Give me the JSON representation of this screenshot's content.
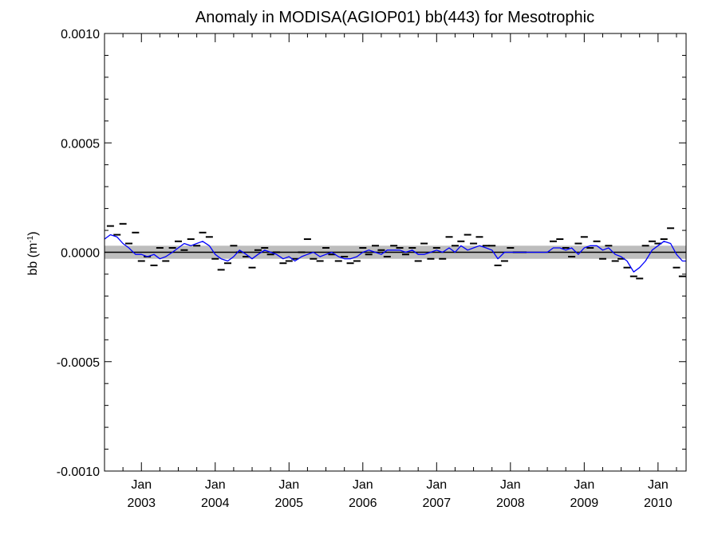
{
  "chart_data": {
    "type": "line",
    "title": "Anomaly in MODISA(AGIOP01) bb(443) for Mesotrophic",
    "ylabel_main": "bb (m",
    "ylabel_sup": "-1",
    "ylabel_close": ")",
    "ylim": [
      -0.001,
      0.001
    ],
    "xlim": [
      2002.5,
      2010.38
    ],
    "y_ticks": [
      {
        "value": 0.001,
        "label": "0.0010"
      },
      {
        "value": 0.0005,
        "label": "0.0005"
      },
      {
        "value": 0.0,
        "label": "0.0000"
      },
      {
        "value": -0.0005,
        "label": "-0.0005"
      },
      {
        "value": -0.001,
        "label": "-0.0010"
      }
    ],
    "x_ticks": [
      {
        "value": 2003.0,
        "month": "Jan",
        "year": "2003"
      },
      {
        "value": 2004.0,
        "month": "Jan",
        "year": "2004"
      },
      {
        "value": 2005.0,
        "month": "Jan",
        "year": "2005"
      },
      {
        "value": 2006.0,
        "month": "Jan",
        "year": "2006"
      },
      {
        "value": 2007.0,
        "month": "Jan",
        "year": "2007"
      },
      {
        "value": 2008.0,
        "month": "Jan",
        "year": "2008"
      },
      {
        "value": 2009.0,
        "month": "Jan",
        "year": "2009"
      },
      {
        "value": 2010.0,
        "month": "Jan",
        "year": "2010"
      }
    ],
    "zero_line": 0.0,
    "band": {
      "lower": -3e-05,
      "upper": 3e-05,
      "color": "#bdbdbd"
    },
    "series": [
      {
        "kind": "line",
        "color": "#0000ff",
        "points": [
          [
            2002.5,
            6e-05
          ],
          [
            2002.58,
            8e-05
          ],
          [
            2002.67,
            7e-05
          ],
          [
            2002.75,
            4e-05
          ],
          [
            2002.83,
            2e-05
          ],
          [
            2002.92,
            -1e-05
          ],
          [
            2003.0,
            -1e-05
          ],
          [
            2003.08,
            -2e-05
          ],
          [
            2003.17,
            -1e-05
          ],
          [
            2003.25,
            -3e-05
          ],
          [
            2003.33,
            -2e-05
          ],
          [
            2003.42,
            0.0
          ],
          [
            2003.5,
            2e-05
          ],
          [
            2003.58,
            4e-05
          ],
          [
            2003.67,
            3e-05
          ],
          [
            2003.75,
            4e-05
          ],
          [
            2003.83,
            5e-05
          ],
          [
            2003.92,
            3e-05
          ],
          [
            2004.0,
            -1e-05
          ],
          [
            2004.08,
            -3e-05
          ],
          [
            2004.17,
            -4e-05
          ],
          [
            2004.25,
            -2e-05
          ],
          [
            2004.33,
            1e-05
          ],
          [
            2004.42,
            -1e-05
          ],
          [
            2004.5,
            -3e-05
          ],
          [
            2004.58,
            -1e-05
          ],
          [
            2004.67,
            1e-05
          ],
          [
            2004.75,
            0.0
          ],
          [
            2004.83,
            -1e-05
          ],
          [
            2004.92,
            -3e-05
          ],
          [
            2005.0,
            -2e-05
          ],
          [
            2005.08,
            -4e-05
          ],
          [
            2005.17,
            -2e-05
          ],
          [
            2005.25,
            -1e-05
          ],
          [
            2005.33,
            0.0
          ],
          [
            2005.42,
            -2e-05
          ],
          [
            2005.5,
            -1e-05
          ],
          [
            2005.58,
            0.0
          ],
          [
            2005.67,
            -2e-05
          ],
          [
            2005.75,
            -3e-05
          ],
          [
            2005.83,
            -3e-05
          ],
          [
            2005.92,
            -2e-05
          ],
          [
            2006.0,
            0.0
          ],
          [
            2006.08,
            1e-05
          ],
          [
            2006.17,
            0.0
          ],
          [
            2006.25,
            -1e-05
          ],
          [
            2006.33,
            1e-05
          ],
          [
            2006.42,
            1e-05
          ],
          [
            2006.5,
            1e-05
          ],
          [
            2006.58,
            0.0
          ],
          [
            2006.67,
            1e-05
          ],
          [
            2006.75,
            -1e-05
          ],
          [
            2006.83,
            -1e-05
          ],
          [
            2006.92,
            0.0
          ],
          [
            2007.0,
            1e-05
          ],
          [
            2007.08,
            0.0
          ],
          [
            2007.17,
            2e-05
          ],
          [
            2007.25,
            0.0
          ],
          [
            2007.33,
            3e-05
          ],
          [
            2007.42,
            1e-05
          ],
          [
            2007.5,
            2e-05
          ],
          [
            2007.58,
            3e-05
          ],
          [
            2007.67,
            2e-05
          ],
          [
            2007.75,
            1e-05
          ],
          [
            2007.83,
            -3e-05
          ],
          [
            2007.92,
            0.0
          ],
          [
            2008.0,
            0.0
          ],
          [
            2008.08,
            0.0
          ],
          [
            2008.17,
            0.0
          ],
          [
            2008.25,
            0.0
          ],
          [
            2008.33,
            0.0
          ],
          [
            2008.42,
            0.0
          ],
          [
            2008.5,
            0.0
          ],
          [
            2008.58,
            2e-05
          ],
          [
            2008.67,
            2e-05
          ],
          [
            2008.75,
            1e-05
          ],
          [
            2008.83,
            2e-05
          ],
          [
            2008.92,
            -1e-05
          ],
          [
            2009.0,
            2e-05
          ],
          [
            2009.08,
            3e-05
          ],
          [
            2009.17,
            3e-05
          ],
          [
            2009.25,
            1e-05
          ],
          [
            2009.33,
            2e-05
          ],
          [
            2009.42,
            -1e-05
          ],
          [
            2009.5,
            -2e-05
          ],
          [
            2009.58,
            -4e-05
          ],
          [
            2009.67,
            -9e-05
          ],
          [
            2009.75,
            -7e-05
          ],
          [
            2009.83,
            -4e-05
          ],
          [
            2009.92,
            1e-05
          ],
          [
            2010.0,
            3e-05
          ],
          [
            2010.08,
            5e-05
          ],
          [
            2010.17,
            4e-05
          ],
          [
            2010.25,
            -1e-05
          ],
          [
            2010.33,
            -4e-05
          ],
          [
            2010.38,
            -4e-05
          ]
        ]
      },
      {
        "kind": "dash-markers",
        "color": "#000000",
        "points": [
          [
            2002.58,
            0.00012
          ],
          [
            2002.67,
            8e-05
          ],
          [
            2002.75,
            0.00013
          ],
          [
            2002.83,
            4e-05
          ],
          [
            2002.92,
            9e-05
          ],
          [
            2003.0,
            -4e-05
          ],
          [
            2003.08,
            -2e-05
          ],
          [
            2003.17,
            -6e-05
          ],
          [
            2003.25,
            2e-05
          ],
          [
            2003.33,
            -4e-05
          ],
          [
            2003.42,
            2e-05
          ],
          [
            2003.5,
            5e-05
          ],
          [
            2003.58,
            1e-05
          ],
          [
            2003.67,
            6e-05
          ],
          [
            2003.75,
            3e-05
          ],
          [
            2003.83,
            9e-05
          ],
          [
            2003.92,
            7e-05
          ],
          [
            2004.0,
            -3e-05
          ],
          [
            2004.08,
            -8e-05
          ],
          [
            2004.17,
            -5e-05
          ],
          [
            2004.25,
            3e-05
          ],
          [
            2004.33,
            0.0
          ],
          [
            2004.42,
            -2e-05
          ],
          [
            2004.5,
            -7e-05
          ],
          [
            2004.58,
            1e-05
          ],
          [
            2004.67,
            2e-05
          ],
          [
            2004.75,
            -1e-05
          ],
          [
            2004.83,
            0.0
          ],
          [
            2004.92,
            -5e-05
          ],
          [
            2005.0,
            -4e-05
          ],
          [
            2005.08,
            -3e-05
          ],
          [
            2005.17,
            0.0
          ],
          [
            2005.25,
            6e-05
          ],
          [
            2005.33,
            -3e-05
          ],
          [
            2005.42,
            -4e-05
          ],
          [
            2005.5,
            2e-05
          ],
          [
            2005.58,
            -1e-05
          ],
          [
            2005.67,
            -4e-05
          ],
          [
            2005.75,
            -2e-05
          ],
          [
            2005.83,
            -5e-05
          ],
          [
            2005.92,
            -4e-05
          ],
          [
            2006.0,
            2e-05
          ],
          [
            2006.08,
            -1e-05
          ],
          [
            2006.17,
            3e-05
          ],
          [
            2006.25,
            1e-05
          ],
          [
            2006.33,
            -2e-05
          ],
          [
            2006.42,
            3e-05
          ],
          [
            2006.5,
            2e-05
          ],
          [
            2006.58,
            -1e-05
          ],
          [
            2006.67,
            2e-05
          ],
          [
            2006.75,
            -4e-05
          ],
          [
            2006.83,
            4e-05
          ],
          [
            2006.92,
            -3e-05
          ],
          [
            2007.0,
            2e-05
          ],
          [
            2007.08,
            -3e-05
          ],
          [
            2007.17,
            7e-05
          ],
          [
            2007.25,
            3e-05
          ],
          [
            2007.33,
            5e-05
          ],
          [
            2007.42,
            8e-05
          ],
          [
            2007.5,
            4e-05
          ],
          [
            2007.58,
            7e-05
          ],
          [
            2007.67,
            3e-05
          ],
          [
            2007.75,
            3e-05
          ],
          [
            2007.83,
            -6e-05
          ],
          [
            2007.92,
            -4e-05
          ],
          [
            2008.0,
            2e-05
          ],
          [
            2008.08,
            0.0
          ],
          [
            2008.17,
            0.0
          ],
          [
            2008.58,
            5e-05
          ],
          [
            2008.67,
            6e-05
          ],
          [
            2008.75,
            2e-05
          ],
          [
            2008.83,
            -2e-05
          ],
          [
            2008.92,
            4e-05
          ],
          [
            2009.0,
            7e-05
          ],
          [
            2009.08,
            2e-05
          ],
          [
            2009.17,
            5e-05
          ],
          [
            2009.25,
            -3e-05
          ],
          [
            2009.33,
            3e-05
          ],
          [
            2009.42,
            -4e-05
          ],
          [
            2009.5,
            -3e-05
          ],
          [
            2009.58,
            -7e-05
          ],
          [
            2009.67,
            -0.00011
          ],
          [
            2009.75,
            -0.00012
          ],
          [
            2009.83,
            3e-05
          ],
          [
            2009.92,
            5e-05
          ],
          [
            2010.0,
            4e-05
          ],
          [
            2010.08,
            6e-05
          ],
          [
            2010.17,
            0.00011
          ],
          [
            2010.25,
            -7e-05
          ],
          [
            2010.33,
            -0.00011
          ]
        ]
      }
    ],
    "grid": false,
    "legend": "none"
  }
}
